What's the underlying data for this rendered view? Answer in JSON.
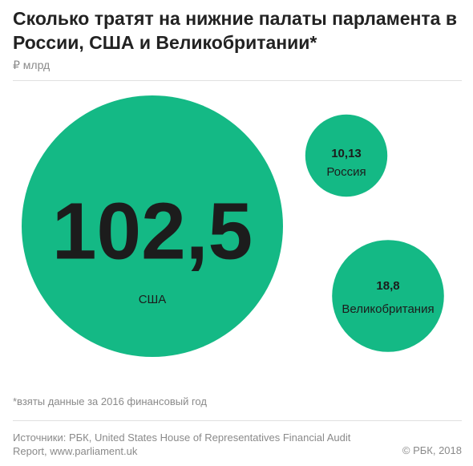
{
  "header": {
    "title": "Сколько тратят на нижние палаты парламента в России, США и Великобритании*",
    "unit": "₽ млрд"
  },
  "colors": {
    "bubble": "#14b985",
    "big_value_text": "#1c1c1c",
    "label_text": "#1c1c1c"
  },
  "chart_data": {
    "type": "bubble",
    "unit": "₽ млрд",
    "categories": [
      "США",
      "Россия",
      "Великобритания"
    ],
    "values": [
      102.5,
      10.13,
      18.8
    ],
    "value_labels": [
      "102,5",
      "10,13",
      "18,8"
    ]
  },
  "footer": {
    "note": "*взяты данные за 2016 финансовый год",
    "sources": "Источники: РБК, United States House of Representatives Financial Audit Report, www.parliament.uk",
    "copyright": "© РБК, 2018"
  }
}
